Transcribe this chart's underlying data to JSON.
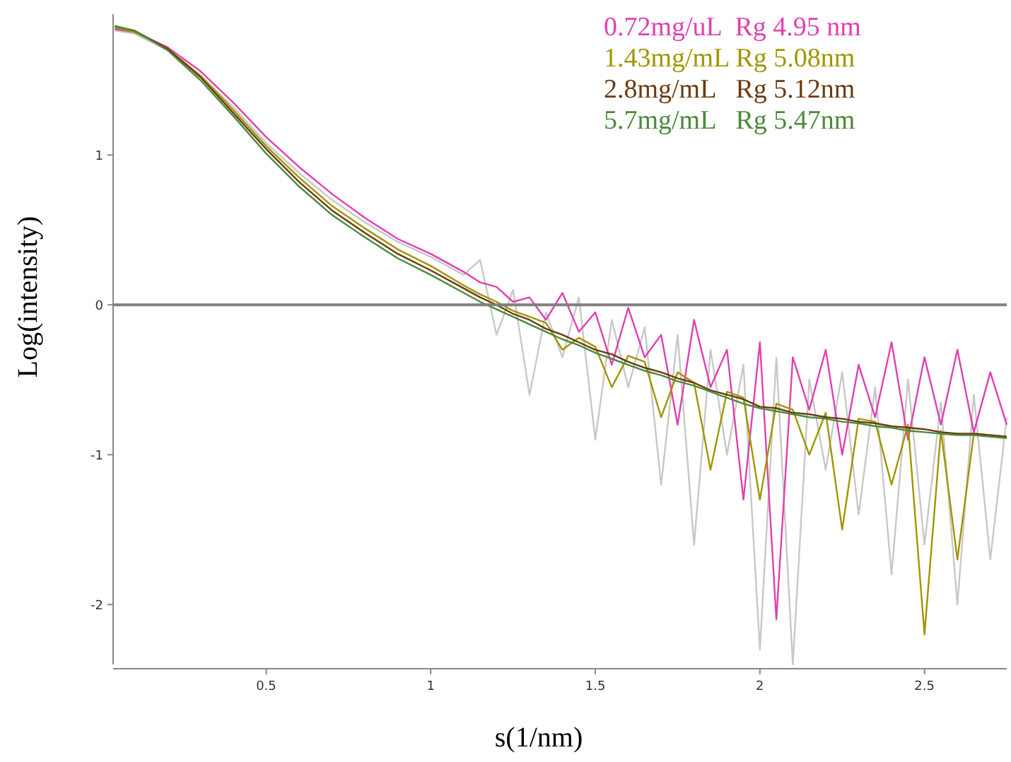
{
  "chart_data": {
    "type": "line",
    "xlabel": "s(1/nm)",
    "ylabel": "Log(intensity)",
    "x": [
      0.04,
      0.1,
      0.2,
      0.3,
      0.4,
      0.5,
      0.6,
      0.7,
      0.8,
      0.9,
      1.0,
      1.1,
      1.15,
      1.2,
      1.25,
      1.3,
      1.35,
      1.4,
      1.45,
      1.5,
      1.55,
      1.6,
      1.65,
      1.7,
      1.75,
      1.8,
      1.85,
      1.9,
      1.95,
      2.0,
      2.05,
      2.1,
      2.15,
      2.2,
      2.25,
      2.3,
      2.35,
      2.4,
      2.45,
      2.5,
      2.55,
      2.6,
      2.65,
      2.7,
      2.75
    ],
    "series": [
      {
        "color": "#c8c8c8",
        "values": [
          1.83,
          1.81,
          1.7,
          1.53,
          1.32,
          1.08,
          0.88,
          0.7,
          0.55,
          0.42,
          0.32,
          0.2,
          0.3,
          -0.2,
          0.1,
          -0.6,
          -0.05,
          -0.35,
          0.05,
          -0.9,
          -0.1,
          -0.55,
          -0.15,
          -1.2,
          -0.2,
          -1.6,
          -0.3,
          -1.0,
          -0.4,
          -2.3,
          -0.35,
          -2.4,
          -0.5,
          -1.1,
          -0.45,
          -1.4,
          -0.55,
          -1.8,
          -0.5,
          -1.6,
          -0.65,
          -2.0,
          -0.6,
          -1.7,
          -0.75
        ]
      },
      {
        "name": "0.72mg/uL  Rg 4.95 nm",
        "color": "#e040b0",
        "values": [
          1.84,
          1.82,
          1.72,
          1.56,
          1.35,
          1.12,
          0.92,
          0.74,
          0.58,
          0.44,
          0.34,
          0.22,
          0.15,
          0.12,
          0.02,
          0.05,
          -0.1,
          0.08,
          -0.18,
          -0.05,
          -0.4,
          -0.02,
          -0.35,
          -0.2,
          -0.8,
          -0.1,
          -0.55,
          -0.3,
          -1.3,
          -0.25,
          -2.1,
          -0.35,
          -0.7,
          -0.3,
          -1.0,
          -0.4,
          -0.75,
          -0.25,
          -0.9,
          -0.35,
          -0.8,
          -0.3,
          -0.85,
          -0.45,
          -0.8
        ]
      },
      {
        "name": "1.43mg/mL Rg 5.08nm",
        "color": "#a09600",
        "values": [
          1.85,
          1.82,
          1.71,
          1.53,
          1.3,
          1.06,
          0.85,
          0.66,
          0.51,
          0.37,
          0.26,
          0.13,
          0.07,
          0.02,
          -0.04,
          -0.08,
          -0.12,
          -0.3,
          -0.22,
          -0.28,
          -0.55,
          -0.34,
          -0.38,
          -0.75,
          -0.45,
          -0.52,
          -1.1,
          -0.58,
          -0.62,
          -1.3,
          -0.66,
          -0.7,
          -1.0,
          -0.72,
          -1.5,
          -0.76,
          -0.78,
          -1.2,
          -0.8,
          -2.2,
          -0.84,
          -1.7,
          -0.86,
          -0.87,
          -0.88
        ]
      },
      {
        "name": "2.8mg/mL   Rg 5.12nm",
        "color": "#6b3a10",
        "values": [
          1.86,
          1.83,
          1.71,
          1.52,
          1.28,
          1.04,
          0.82,
          0.63,
          0.48,
          0.34,
          0.23,
          0.11,
          0.05,
          0.0,
          -0.06,
          -0.1,
          -0.16,
          -0.2,
          -0.25,
          -0.3,
          -0.33,
          -0.38,
          -0.42,
          -0.45,
          -0.49,
          -0.52,
          -0.57,
          -0.6,
          -0.63,
          -0.68,
          -0.69,
          -0.72,
          -0.73,
          -0.75,
          -0.76,
          -0.78,
          -0.79,
          -0.81,
          -0.82,
          -0.83,
          -0.85,
          -0.86,
          -0.86,
          -0.87,
          -0.88
        ]
      },
      {
        "name": "5.7mg/mL   Rg 5.47nm",
        "color": "#4a8a3a",
        "values": [
          1.86,
          1.83,
          1.7,
          1.5,
          1.26,
          1.01,
          0.79,
          0.6,
          0.45,
          0.31,
          0.2,
          0.08,
          0.02,
          -0.03,
          -0.08,
          -0.13,
          -0.18,
          -0.23,
          -0.27,
          -0.32,
          -0.36,
          -0.4,
          -0.44,
          -0.47,
          -0.51,
          -0.54,
          -0.58,
          -0.62,
          -0.66,
          -0.69,
          -0.71,
          -0.73,
          -0.75,
          -0.76,
          -0.78,
          -0.79,
          -0.81,
          -0.82,
          -0.84,
          -0.85,
          -0.86,
          -0.87,
          -0.87,
          -0.88,
          -0.89
        ]
      }
    ],
    "xlim": [
      0.035,
      2.75
    ],
    "ylim": [
      -2.4,
      1.94
    ],
    "xticks": [
      0.5,
      1,
      1.5,
      2,
      2.5
    ],
    "yticks": [
      -2,
      -1,
      0,
      1
    ],
    "ref_lines": [
      {
        "axis": "y",
        "value": 0,
        "color": "#808080"
      }
    ],
    "legend": "top right",
    "marker": "none",
    "line_style": "solid",
    "grid": false
  }
}
